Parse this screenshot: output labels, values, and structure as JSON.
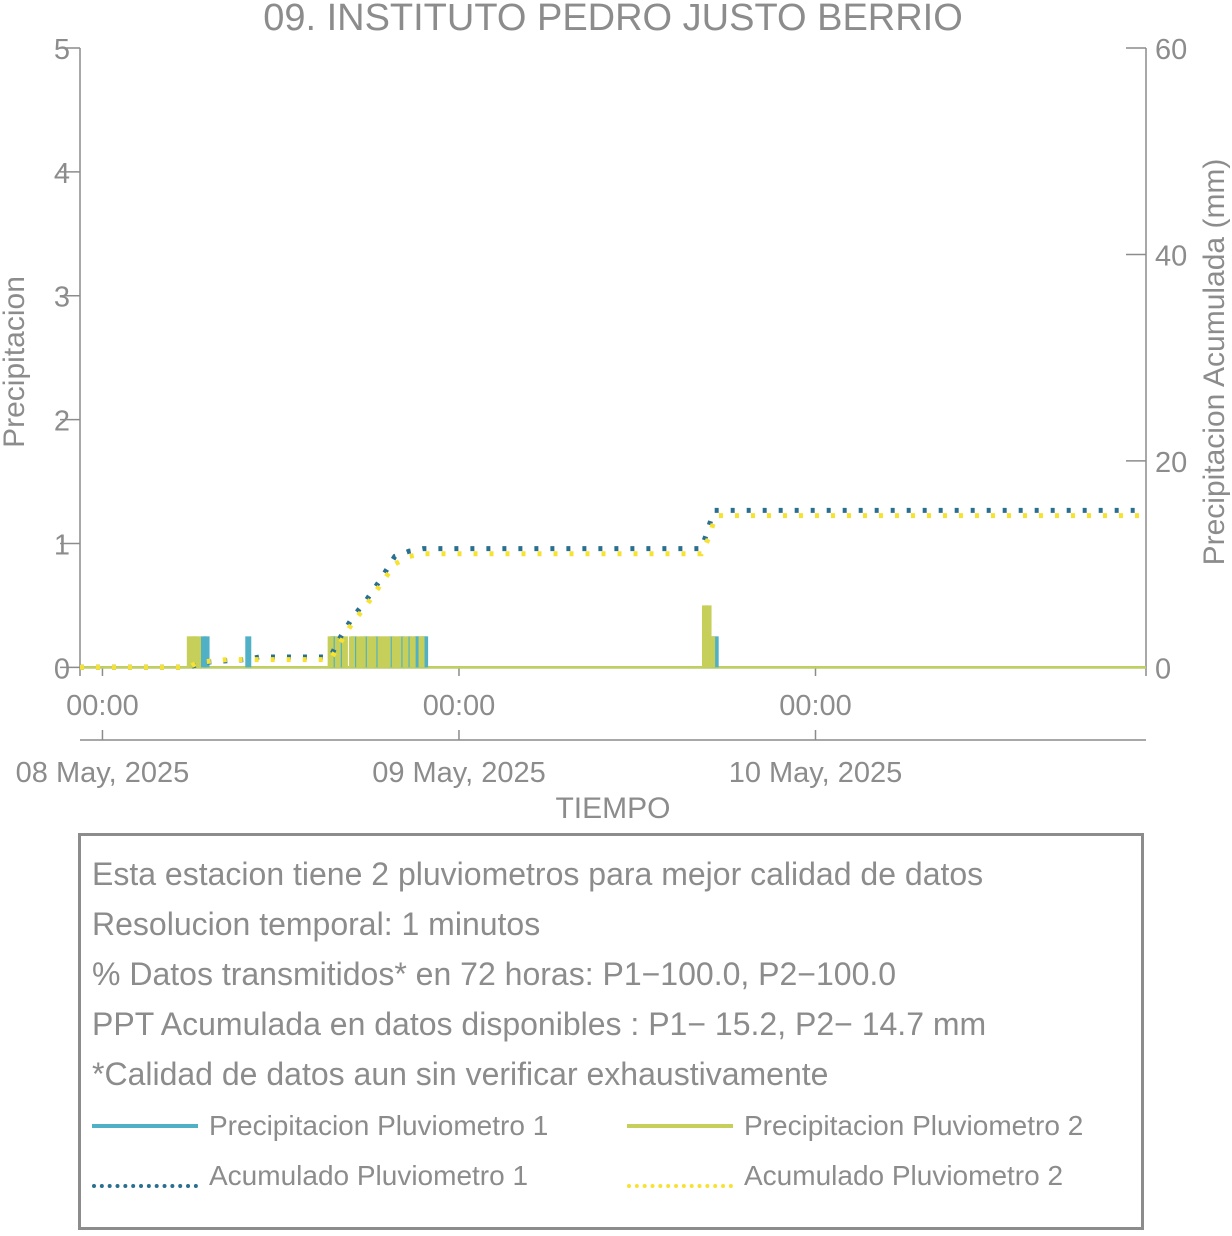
{
  "chart_data": {
    "type": "line",
    "title": "09. INSTITUTO PEDRO JUSTO BERRIO",
    "xlabel": "TIEMPO",
    "ylabel": "Precipitacion",
    "ylabel_right": "Precipitacion Acumulada (mm)",
    "ylim": [
      -0.07,
      5
    ],
    "ylim_right": [
      -0.84,
      60
    ],
    "xlim": [
      -0.063,
      2.927
    ],
    "grid": false,
    "yticks": [
      0,
      1,
      2,
      3,
      4,
      5
    ],
    "yticks_right": [
      0,
      20,
      40,
      60
    ],
    "xticks": [
      {
        "x": 0,
        "time": "00:00",
        "date": "08 May, 2025"
      },
      {
        "x": 1,
        "time": "00:00",
        "date": "09 May, 2025"
      },
      {
        "x": 2,
        "time": "00:00",
        "date": "10 May, 2025"
      }
    ],
    "legend_position": "bottom",
    "series": [
      {
        "name": "Precipitacion Pluviometro 1",
        "axis": "left",
        "style": "bars",
        "color": "#4fb0c6",
        "points": [
          [
            0.283,
            0.25
          ],
          [
            0.292,
            0.25
          ],
          [
            0.409,
            0.25
          ],
          [
            0.646,
            0.25
          ],
          [
            0.65,
            0.25
          ],
          [
            0.67,
            0.25
          ],
          [
            0.705,
            0.25
          ],
          [
            0.74,
            0.25
          ],
          [
            0.77,
            0.25
          ],
          [
            0.81,
            0.25
          ],
          [
            0.84,
            0.25
          ],
          [
            0.86,
            0.25
          ],
          [
            0.88,
            0.25
          ],
          [
            0.885,
            0.25
          ],
          [
            0.9,
            0.25
          ],
          [
            0.905,
            0.25
          ],
          [
            1.7,
            0.25
          ],
          [
            1.71,
            0.25
          ],
          [
            1.72,
            0.25
          ]
        ]
      },
      {
        "name": "Precipitacion Pluviometro 2",
        "axis": "left",
        "style": "bars",
        "color": "#c5cf5a",
        "points": [
          [
            0.245,
            0.25
          ],
          [
            0.253,
            0.25
          ],
          [
            0.26,
            0.25
          ],
          [
            0.268,
            0.25
          ],
          [
            0.64,
            0.25
          ],
          [
            0.66,
            0.25
          ],
          [
            0.68,
            0.25
          ],
          [
            0.7,
            0.25
          ],
          [
            0.72,
            0.25
          ],
          [
            0.73,
            0.25
          ],
          [
            0.75,
            0.25
          ],
          [
            0.76,
            0.25
          ],
          [
            0.78,
            0.25
          ],
          [
            0.79,
            0.25
          ],
          [
            0.8,
            0.25
          ],
          [
            0.82,
            0.25
          ],
          [
            0.83,
            0.25
          ],
          [
            0.85,
            0.25
          ],
          [
            0.87,
            0.25
          ],
          [
            0.895,
            0.25
          ],
          [
            1.69,
            0.5
          ],
          [
            1.7,
            0.5
          ],
          [
            1.71,
            0.25
          ]
        ]
      },
      {
        "name": "Acumulado Pluviometro 1",
        "axis": "right",
        "style": "dotted",
        "color": "#2a6f8f",
        "points": [
          [
            -0.063,
            0
          ],
          [
            0.24,
            0
          ],
          [
            0.29,
            0.5
          ],
          [
            0.4,
            0.75
          ],
          [
            0.44,
            1.0
          ],
          [
            0.64,
            1.0
          ],
          [
            0.66,
            2.5
          ],
          [
            0.7,
            4.75
          ],
          [
            0.74,
            6.5
          ],
          [
            0.78,
            8.5
          ],
          [
            0.82,
            10.75
          ],
          [
            0.86,
            11.25
          ],
          [
            0.9,
            11.5
          ],
          [
            1.0,
            11.5
          ],
          [
            1.68,
            11.5
          ],
          [
            1.695,
            13.0
          ],
          [
            1.715,
            15.2
          ],
          [
            2.927,
            15.2
          ]
        ]
      },
      {
        "name": "Acumulado Pluviometro 2",
        "axis": "right",
        "style": "dotted",
        "color": "#f7e232",
        "points": [
          [
            -0.063,
            0
          ],
          [
            0.24,
            0
          ],
          [
            0.27,
            0.5
          ],
          [
            0.35,
            0.75
          ],
          [
            0.44,
            0.75
          ],
          [
            0.64,
            0.75
          ],
          [
            0.66,
            2.0
          ],
          [
            0.7,
            4.25
          ],
          [
            0.74,
            6.0
          ],
          [
            0.78,
            8.0
          ],
          [
            0.82,
            10.0
          ],
          [
            0.86,
            10.75
          ],
          [
            0.9,
            11.0
          ],
          [
            1.0,
            11.0
          ],
          [
            1.68,
            11.0
          ],
          [
            1.7,
            12.5
          ],
          [
            1.72,
            14.7
          ],
          [
            2.927,
            14.7
          ]
        ]
      }
    ]
  },
  "info": {
    "lines": [
      "Esta estacion tiene 2 pluviometros para mejor calidad de datos",
      "Resolucion temporal: 1 minutos",
      "% Datos transmitidos* en 72 horas: P1−100.0, P2−100.0",
      "PPT Acumulada en datos disponibles : P1− 15.2, P2− 14.7 mm",
      "*Calidad de datos aun sin verificar exhaustivamente"
    ]
  },
  "legend": {
    "items": [
      {
        "label": "Precipitacion Pluviometro 1",
        "color": "#4fb0c6",
        "style": "solid"
      },
      {
        "label": "Precipitacion Pluviometro 2",
        "color": "#c5cf5a",
        "style": "solid"
      },
      {
        "label": "Acumulado Pluviometro 1",
        "color": "#2a6f8f",
        "style": "dotted"
      },
      {
        "label": "Acumulado Pluviometro 2",
        "color": "#f7e232",
        "style": "dotted"
      }
    ]
  }
}
